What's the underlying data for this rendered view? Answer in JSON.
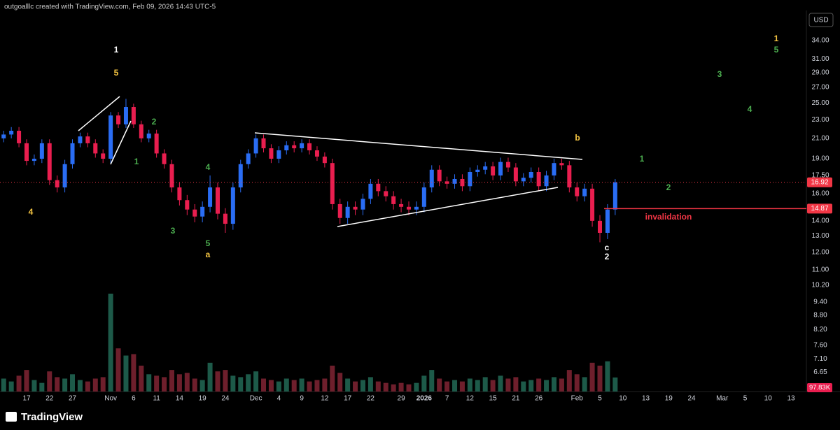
{
  "header": {
    "attribution": "outgoalllc created with TradingView.com, Feb 09, 2026 14:43 UTC-5",
    "currency": "USD",
    "brand": "TradingView"
  },
  "chart_data": {
    "type": "candlestick",
    "log_scale": true,
    "grid": false,
    "up_color": "#2a6df4",
    "down_color": "#e91e4f",
    "volume_up_color": "#1d5a49",
    "volume_down_color": "#6e1f2c",
    "categories": [
      null,
      null,
      null,
      "17",
      null,
      null,
      "22",
      null,
      null,
      "27",
      null,
      null,
      null,
      null,
      "Nov",
      null,
      null,
      "6",
      null,
      null,
      "11",
      null,
      null,
      "14",
      null,
      null,
      "19",
      null,
      null,
      "24",
      null,
      null,
      null,
      "Dec",
      null,
      null,
      "4",
      null,
      null,
      "9",
      null,
      null,
      "12",
      null,
      null,
      "17",
      null,
      null,
      "22",
      null,
      null,
      null,
      "29",
      null,
      null,
      "2026",
      null,
      null,
      "7",
      null,
      null,
      "12",
      null,
      null,
      "15",
      null,
      null,
      "21",
      null,
      null,
      "26",
      null,
      null,
      null,
      null,
      "Feb",
      null,
      null,
      "5",
      null,
      null,
      "10",
      null,
      null,
      "13",
      null,
      null,
      "19",
      null,
      null,
      "24",
      null,
      null,
      null,
      "Mar",
      null,
      null,
      "5",
      null,
      null,
      "10",
      null,
      null,
      "13"
    ],
    "open": [
      21.0,
      21.4,
      21.8,
      20.5,
      18.8,
      19.0,
      20.5,
      17.1,
      16.5,
      18.5,
      20.5,
      21.2,
      20.5,
      19.5,
      19.0,
      23.5,
      22.5,
      24.5,
      22.5,
      21.0,
      21.5,
      19.5,
      18.5,
      16.5,
      15.5,
      14.8,
      14.3,
      15.0,
      16.5,
      14.5,
      13.8,
      16.5,
      18.5,
      19.5,
      21.0,
      20.0,
      19.0,
      19.8,
      20.3,
      20.0,
      20.5,
      19.8,
      19.2,
      18.6,
      15.2,
      14.2,
      15.0,
      14.8,
      15.6,
      16.8,
      16.2,
      15.8,
      15.2,
      15.0,
      14.8,
      15.0,
      16.5,
      18.0,
      17.0,
      16.8,
      17.2,
      16.6,
      17.8,
      18.0,
      18.3,
      17.5,
      18.7,
      18.2,
      17.0,
      17.3,
      17.8,
      16.6,
      17.5,
      18.6,
      18.4,
      16.5,
      15.8,
      16.4,
      14.0,
      13.2,
      14.8,
      null,
      null,
      null,
      null,
      null,
      null,
      null,
      null,
      null,
      null,
      null,
      null,
      null,
      null,
      null,
      null,
      null,
      null,
      null,
      null,
      null,
      null,
      null
    ],
    "high": [
      21.8,
      22.2,
      22.2,
      20.9,
      19.4,
      20.9,
      20.9,
      17.5,
      18.9,
      20.9,
      21.6,
      21.6,
      20.9,
      19.9,
      23.9,
      23.9,
      25.5,
      24.9,
      22.9,
      21.9,
      21.9,
      19.9,
      18.9,
      16.9,
      15.9,
      15.2,
      15.4,
      17.5,
      16.9,
      14.9,
      16.9,
      18.9,
      19.9,
      21.4,
      21.4,
      20.4,
      20.2,
      20.7,
      20.7,
      20.9,
      20.9,
      20.2,
      19.6,
      19.0,
      15.6,
      15.4,
      15.4,
      16.0,
      17.2,
      17.2,
      16.6,
      16.2,
      15.6,
      15.4,
      15.4,
      16.9,
      18.4,
      18.4,
      17.4,
      17.6,
      17.6,
      18.2,
      18.4,
      18.7,
      18.7,
      19.1,
      19.1,
      18.6,
      17.7,
      18.2,
      18.2,
      17.9,
      19.0,
      19.0,
      18.8,
      16.9,
      16.8,
      16.8,
      14.4,
      15.2,
      17.2,
      null,
      null,
      null,
      null,
      null,
      null,
      null,
      null,
      null,
      null,
      null,
      null,
      null,
      null,
      null,
      null,
      null,
      null,
      null,
      null,
      null,
      null,
      null
    ],
    "low": [
      20.6,
      21.0,
      20.1,
      18.4,
      18.4,
      18.6,
      16.7,
      16.1,
      16.1,
      18.1,
      20.1,
      20.1,
      19.1,
      18.6,
      18.6,
      22.1,
      22.1,
      22.1,
      20.6,
      20.6,
      19.1,
      18.1,
      16.1,
      15.1,
      14.4,
      13.9,
      13.9,
      14.6,
      14.1,
      13.2,
      13.4,
      16.1,
      18.1,
      19.1,
      19.6,
      18.6,
      18.6,
      19.4,
      19.6,
      19.6,
      19.4,
      18.8,
      18.2,
      14.8,
      13.8,
      13.8,
      14.4,
      14.4,
      15.2,
      15.8,
      15.4,
      14.8,
      14.6,
      14.4,
      14.4,
      14.6,
      16.1,
      16.6,
      16.4,
      16.4,
      16.2,
      16.2,
      17.4,
      17.6,
      17.1,
      17.1,
      17.8,
      16.6,
      16.6,
      16.9,
      16.2,
      16.2,
      17.1,
      18.0,
      16.1,
      15.4,
      15.4,
      13.6,
      12.6,
      12.8,
      14.4,
      null,
      null,
      null,
      null,
      null,
      null,
      null,
      null,
      null,
      null,
      null,
      null,
      null,
      null,
      null,
      null,
      null,
      null,
      null,
      null,
      null,
      null,
      null
    ],
    "close": [
      21.4,
      21.8,
      20.5,
      18.8,
      19.0,
      20.5,
      17.1,
      16.5,
      18.5,
      20.5,
      21.2,
      20.5,
      19.5,
      19.0,
      23.5,
      22.5,
      24.5,
      22.5,
      21.0,
      21.5,
      19.5,
      18.5,
      16.5,
      15.5,
      14.8,
      14.3,
      15.0,
      16.5,
      14.5,
      13.8,
      16.5,
      18.5,
      19.5,
      21.0,
      20.0,
      19.0,
      19.8,
      20.3,
      20.0,
      20.5,
      19.8,
      19.2,
      18.6,
      15.2,
      14.2,
      15.0,
      14.8,
      15.6,
      16.8,
      16.2,
      15.8,
      15.2,
      15.0,
      14.8,
      15.0,
      16.5,
      18.0,
      17.0,
      16.8,
      17.2,
      16.6,
      17.8,
      18.0,
      18.3,
      17.5,
      18.7,
      18.2,
      17.0,
      17.3,
      17.8,
      16.6,
      17.5,
      18.6,
      18.4,
      16.5,
      15.8,
      16.4,
      14.0,
      13.2,
      14.8,
      16.92,
      null,
      null,
      null,
      null,
      null,
      null,
      null,
      null,
      null,
      null,
      null,
      null,
      null,
      null,
      null,
      null,
      null,
      null,
      null,
      null,
      null,
      null,
      null
    ],
    "volume": {
      "values": [
        90000,
        70000,
        110000,
        150000,
        80000,
        60000,
        140000,
        100000,
        90000,
        120000,
        80000,
        70000,
        90000,
        100000,
        680000,
        300000,
        250000,
        260000,
        180000,
        120000,
        110000,
        100000,
        150000,
        120000,
        130000,
        90000,
        80000,
        200000,
        140000,
        150000,
        110000,
        100000,
        120000,
        140000,
        90000,
        80000,
        70000,
        90000,
        80000,
        90000,
        70000,
        80000,
        90000,
        180000,
        130000,
        90000,
        70000,
        80000,
        100000,
        70000,
        60000,
        50000,
        60000,
        50000,
        60000,
        110000,
        150000,
        90000,
        70000,
        80000,
        70000,
        90000,
        80000,
        100000,
        80000,
        110000,
        90000,
        100000,
        70000,
        80000,
        90000,
        80000,
        100000,
        90000,
        150000,
        120000,
        100000,
        200000,
        180000,
        210000,
        97830,
        null,
        null,
        null,
        null,
        null,
        null,
        null,
        null,
        null,
        null,
        null,
        null,
        null,
        null,
        null,
        null,
        null,
        null,
        null,
        null,
        null,
        null,
        null
      ],
      "value_labels": [
        null,
        null,
        null,
        null,
        null,
        null,
        null,
        null,
        null,
        null,
        null,
        null,
        null,
        null,
        null,
        null,
        null,
        null,
        null,
        null,
        null,
        null,
        null,
        null,
        null,
        null,
        null,
        null,
        null,
        null,
        null,
        null,
        null,
        null,
        null,
        null,
        null,
        null,
        null,
        null,
        null,
        null,
        null,
        null,
        null,
        null,
        null,
        null,
        null,
        null,
        null,
        null,
        null,
        null,
        null,
        null,
        null,
        null,
        null,
        null,
        null,
        null,
        null,
        null,
        null,
        null,
        null,
        null,
        null,
        null,
        null,
        null,
        null,
        null,
        null,
        null,
        null,
        null,
        null,
        null,
        "97.83K",
        null,
        null,
        null,
        null,
        null,
        null,
        null,
        null,
        null,
        null,
        null,
        null,
        null,
        null,
        null,
        null,
        null,
        null,
        null,
        null,
        null,
        null,
        null
      ]
    },
    "ylim": [
      6.05,
      38.7
    ],
    "yticks": [
      {
        "value": 34,
        "label": "34.00"
      },
      {
        "value": 31,
        "label": "31.00"
      },
      {
        "value": 29,
        "label": "29.00"
      },
      {
        "value": 27,
        "label": "27.00"
      },
      {
        "value": 25,
        "label": "25.00"
      },
      {
        "value": 23,
        "label": "23.00"
      },
      {
        "value": 21,
        "label": "21.00"
      },
      {
        "value": 19,
        "label": "19.00"
      },
      {
        "value": 17.5,
        "label": "17.50"
      },
      {
        "value": 16,
        "label": "16.00"
      },
      {
        "value": 14,
        "label": "14.00"
      },
      {
        "value": 13,
        "label": "13.00"
      },
      {
        "value": 12,
        "label": "12.00"
      },
      {
        "value": 11,
        "label": "11.00"
      },
      {
        "value": 10.2,
        "label": "10.20"
      },
      {
        "value": 9.4,
        "label": "9.40"
      },
      {
        "value": 8.8,
        "label": "8.80"
      },
      {
        "value": 8.2,
        "label": "8.20"
      },
      {
        "value": 7.6,
        "label": "7.60"
      },
      {
        "value": 7.1,
        "label": "7.10"
      },
      {
        "value": 6.65,
        "label": "6.65"
      }
    ],
    "invalidation_level": 14.87,
    "invalidation_color": "#f23645",
    "last_price_color": "#f23645",
    "annotations": [
      {
        "text": "1",
        "color": "#ffffff"
      },
      {
        "text": "5",
        "color": "#f5c542"
      },
      {
        "text": "4",
        "color": "#f5c542"
      },
      {
        "text": "2",
        "color": "#4caf50"
      },
      {
        "text": "1",
        "color": "#4caf50"
      },
      {
        "text": "4",
        "color": "#4caf50"
      },
      {
        "text": "3",
        "color": "#4caf50"
      },
      {
        "text": "5",
        "color": "#4caf50"
      },
      {
        "text": "a",
        "color": "#f5c542"
      },
      {
        "text": "b",
        "color": "#f5c542"
      },
      {
        "text": "1",
        "color": "#4caf50"
      },
      {
        "text": "2",
        "color": "#4caf50"
      },
      {
        "text": "c",
        "color": "#ffffff"
      },
      {
        "text": "2",
        "color": "#ffffff"
      },
      {
        "text": "3",
        "color": "#4caf50"
      },
      {
        "text": "4",
        "color": "#4caf50"
      },
      {
        "text": "1",
        "color": "#f5c542"
      },
      {
        "text": "5",
        "color": "#4caf50"
      },
      {
        "text": "invalidation",
        "color": "#f23645"
      }
    ]
  }
}
